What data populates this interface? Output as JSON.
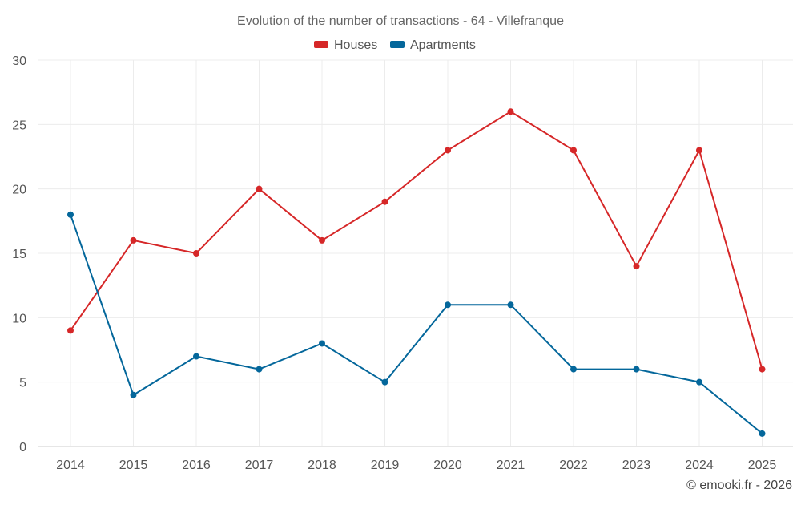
{
  "chart_data": {
    "type": "line",
    "title": "Evolution of the number of transactions - 64 - Villefranque",
    "xlabel": "",
    "ylabel": "",
    "categories": [
      "2014",
      "2015",
      "2016",
      "2017",
      "2018",
      "2019",
      "2020",
      "2021",
      "2022",
      "2023",
      "2024",
      "2025"
    ],
    "ylim": [
      0,
      30
    ],
    "yticks": [
      0,
      5,
      10,
      15,
      20,
      25,
      30
    ],
    "grid": true,
    "legend_position": "top-center",
    "series": [
      {
        "name": "Houses",
        "color": "#d62728",
        "values": [
          9,
          16,
          15,
          20,
          16,
          19,
          23,
          26,
          23,
          14,
          23,
          6
        ]
      },
      {
        "name": "Apartments",
        "color": "#04679b",
        "values": [
          18,
          4,
          7,
          6,
          8,
          5,
          11,
          11,
          6,
          6,
          5,
          1
        ]
      }
    ]
  },
  "credit": "© emooki.fr - 2026"
}
